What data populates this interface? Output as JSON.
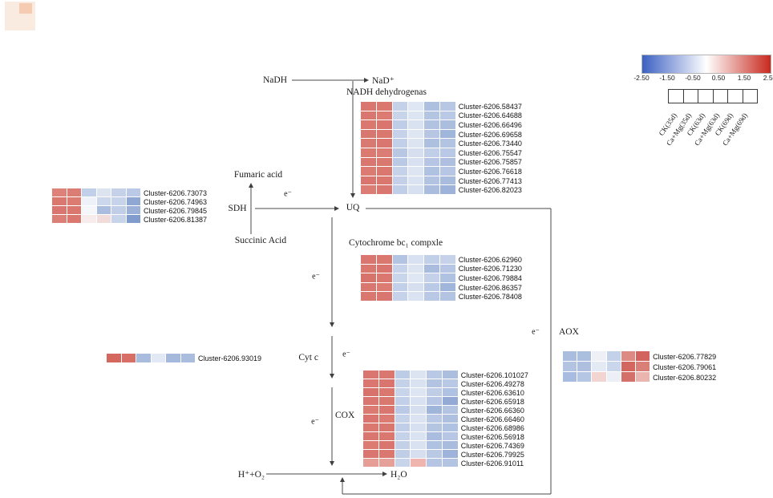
{
  "legend": {
    "gradient_colors": [
      "#3b60c2",
      "#ffffff",
      "#c8291e"
    ],
    "ticks": [
      "-2.50",
      "-1.50",
      "-0.50",
      "0.50",
      "1.50",
      "2.50"
    ],
    "columns": [
      "CK(35d)",
      "Ca+Mg(35d)",
      "CK(63d)",
      "Ca+Mg(63d)",
      "CK(69d)",
      "Ca+Mg(69d)"
    ]
  },
  "pathway": {
    "nadh": "NaDH",
    "nad": "NaD⁺",
    "nadh_dehydrogenase": "NADH dehydrogenas",
    "fumaric": "Fumaric acid",
    "succinic": "Succinic Acid",
    "sdh": "SDH",
    "uq": "UQ",
    "cyt_bc1": "Cytochrome bc₁ compxle",
    "cytc": "Cyt c",
    "cox": "COX",
    "aox": "AOX",
    "h_o2": "H⁺+O₂",
    "h2o": "H₂O",
    "electron": "e⁻"
  },
  "heatmaps": {
    "nadh": {
      "labels": [
        "Cluster-6206.58437",
        "Cluster-6206.64688",
        "Cluster-6206.66496",
        "Cluster-6206.69658",
        "Cluster-6206.73440",
        "Cluster-6206.75547",
        "Cluster-6206.75857",
        "Cluster-6206.76618",
        "Cluster-6206.77413",
        "Cluster-6206.82023"
      ],
      "cells": [
        [
          "#d9766f",
          "#da786f",
          "#c4d1e9",
          "#dfe7f4",
          "#adc0e0",
          "#b7c7e4"
        ],
        [
          "#d9766f",
          "#db7b72",
          "#c8d4ea",
          "#dce5f2",
          "#b4c5e2",
          "#bac9e6"
        ],
        [
          "#da786f",
          "#d9756e",
          "#bfcde7",
          "#d9e2f1",
          "#b2c3e1",
          "#abbede"
        ],
        [
          "#d87770",
          "#da786f",
          "#c6d2e9",
          "#dee6f3",
          "#b6c6e3",
          "#9fb5da"
        ],
        [
          "#d97a72",
          "#d9766f",
          "#c2cfe8",
          "#dce4f2",
          "#aec0df",
          "#b3c4e2"
        ],
        [
          "#da7a70",
          "#db7d74",
          "#b8c8e4",
          "#d5dff0",
          "#c0cee7",
          "#b9c8e5"
        ],
        [
          "#d9766f",
          "#d9786f",
          "#bac9e5",
          "#d8e1f1",
          "#b5c5e3",
          "#aebfdf"
        ],
        [
          "#db7b72",
          "#da786f",
          "#c5d2e9",
          "#dde5f3",
          "#b0c2e1",
          "#b6c6e4"
        ],
        [
          "#d9756e",
          "#da786f",
          "#c3d0e8",
          "#dae3f1",
          "#b3c4e2",
          "#a9bcdd"
        ],
        [
          "#db7d74",
          "#d9766f",
          "#c0cee7",
          "#d7e0f0",
          "#aabdde",
          "#9eb3d9"
        ]
      ]
    },
    "sdh": {
      "labels": [
        "Cluster-6206.73073",
        "Cluster-6206.74963",
        "Cluster-6206.79845",
        "Cluster-6206.81387"
      ],
      "cells": [
        [
          "#dd8179",
          "#db7d74",
          "#c2cfe8",
          "#dce4f2",
          "#c4d1e9",
          "#bac9e6"
        ],
        [
          "#da786f",
          "#db7b72",
          "#eef1f8",
          "#ccd7ec",
          "#c6d3ea",
          "#8fa8d3"
        ],
        [
          "#d9766f",
          "#da786f",
          "#f4f6fa",
          "#aabdde",
          "#c0cee7",
          "#9bb1d7"
        ],
        [
          "#dc7f76",
          "#da786f",
          "#f7eceb",
          "#f0dcda",
          "#c8d4ea",
          "#7f9ccd"
        ]
      ]
    },
    "bc1": {
      "labels": [
        "Cluster-6206.62960",
        "Cluster-6206.71230",
        "Cluster-6206.79884",
        "Cluster-6206.86357",
        "Cluster-6206.78408"
      ],
      "cells": [
        [
          "#d9766f",
          "#da786f",
          "#b3c4e2",
          "#d8e1f1",
          "#c2cfe8",
          "#c6d2e9"
        ],
        [
          "#da786f",
          "#d9756e",
          "#c6d3ea",
          "#dce4f2",
          "#a9bcdd",
          "#b6c6e4"
        ],
        [
          "#d8736c",
          "#da786f",
          "#c9d5eb",
          "#dfe7f4",
          "#c4d1e9",
          "#b0c2e1"
        ],
        [
          "#d9766f",
          "#db7b72",
          "#c2cfe8",
          "#d6dff0",
          "#bac9e6",
          "#9fb5da"
        ],
        [
          "#da786f",
          "#d9766f",
          "#c6d2e9",
          "#dae3f1",
          "#b9c8e5",
          "#b3c4e2"
        ]
      ]
    },
    "cytc": {
      "labels": [
        "Cluster-6206.93019"
      ],
      "cells": [
        [
          "#d4685f",
          "#d86f66",
          "#a9bcdd",
          "#e2e8f4",
          "#a5b9dc",
          "#aabdde"
        ]
      ]
    },
    "cox": {
      "labels": [
        "Cluster-6206.101027",
        "Cluster-6206.49278",
        "Cluster-6206.63610",
        "Cluster-6206.65918",
        "Cluster-6206.66360",
        "Cluster-6206.66460",
        "Cluster-6206.68986",
        "Cluster-6206.56918",
        "Cluster-6206.74369",
        "Cluster-6206.79925",
        "Cluster-6206.91011"
      ],
      "cells": [
        [
          "#d9766f",
          "#da786f",
          "#bdcce6",
          "#dce4f2",
          "#b9c8e5",
          "#abbede"
        ],
        [
          "#da786f",
          "#d9756e",
          "#c4d1e9",
          "#d9e2f1",
          "#b3c4e2",
          "#b9c8e5"
        ],
        [
          "#d8736c",
          "#da786f",
          "#c8d4ea",
          "#dde5f3",
          "#bfcde7",
          "#b0c2e1"
        ],
        [
          "#d9766f",
          "#d9786f",
          "#c2cfe8",
          "#d8e1f1",
          "#b6c6e4",
          "#93abd4"
        ],
        [
          "#da7a70",
          "#d9766f",
          "#bac9e5",
          "#d5dff0",
          "#9fb5da",
          "#b3c4e2"
        ],
        [
          "#d9756e",
          "#db7b72",
          "#c6d2e9",
          "#dbe3f2",
          "#b9c8e5",
          "#aebfdf"
        ],
        [
          "#da786f",
          "#d9766f",
          "#c0cee7",
          "#d7e0f0",
          "#b4c5e2",
          "#b0c2e1"
        ],
        [
          "#d9766f",
          "#da786f",
          "#c5d2e9",
          "#dae3f1",
          "#aabdde",
          "#b6c6e4"
        ],
        [
          "#db7b72",
          "#d9756e",
          "#c3d0e8",
          "#d9e2f1",
          "#b0c2e1",
          "#a9bcdd"
        ],
        [
          "#d9766f",
          "#da786f",
          "#bfcde7",
          "#d6dff0",
          "#b9c8e5",
          "#9eb3d9"
        ],
        [
          "#e59d96",
          "#e6a09a",
          "#c8d4ea",
          "#efb4ae",
          "#b5c5e3",
          "#b3c3e2"
        ]
      ]
    },
    "aox": {
      "labels": [
        "Cluster-6206.77829",
        "Cluster-6206.79061",
        "Cluster-6206.80232"
      ],
      "cells": [
        [
          "#a9bddf",
          "#aabede",
          "#eef0f6",
          "#c3d2e9",
          "#dd8a84",
          "#d3635e"
        ],
        [
          "#b3c4e2",
          "#aebfe0",
          "#e4eaf3",
          "#c9d6ec",
          "#d3675f",
          "#d97f78"
        ],
        [
          "#a8bcdf",
          "#b4c6e3",
          "#f2d5d0",
          "#eceff5",
          "#d4706a",
          "#eab5af"
        ]
      ]
    }
  }
}
